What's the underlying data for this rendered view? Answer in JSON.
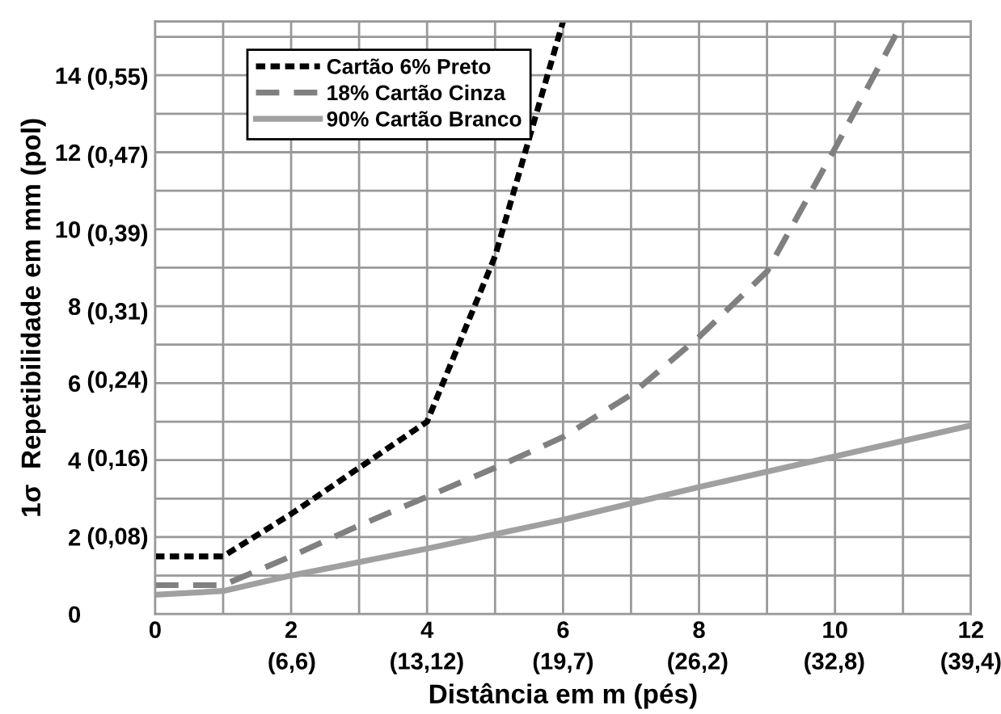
{
  "chart_data": {
    "type": "line",
    "xlabel": "Distância em m (pés)",
    "ylabel": "1σ  Repetibilidade em mm (pol)",
    "xlim": [
      0,
      12
    ],
    "ylim": [
      0,
      15.4
    ],
    "x2lim": [
      0,
      39.4
    ],
    "y2lim": [
      0,
      0.606
    ],
    "xticks": [
      0,
      {
        "value": 1,
        "label": null
      },
      2,
      {
        "value": 3,
        "label": null
      },
      4,
      {
        "value": 5,
        "label": null
      },
      6,
      {
        "value": 7,
        "label": null
      },
      8,
      {
        "value": 9,
        "label": null
      },
      10,
      {
        "value": 11,
        "label": null
      },
      12
    ],
    "x2ticks": [
      {
        "value": 6.6,
        "label": "(6,6)"
      },
      {
        "value": 13.12,
        "label": "(13,12)"
      },
      {
        "value": 19.7,
        "label": "(19,7)"
      },
      {
        "value": 26.2,
        "label": "(26,2)"
      },
      {
        "value": 32.8,
        "label": "(32,8)"
      },
      {
        "value": 39.4,
        "label": "(39,4)"
      }
    ],
    "yticks": [
      0,
      {
        "value": 1,
        "label": null
      },
      2,
      {
        "value": 3,
        "label": null
      },
      4,
      {
        "value": 5,
        "label": null
      },
      6,
      {
        "value": 7,
        "label": null
      },
      8,
      {
        "value": 9,
        "label": null
      },
      10,
      {
        "value": 11,
        "label": null
      },
      12,
      {
        "value": 13,
        "label": null
      },
      14,
      {
        "value": 15,
        "label": null
      }
    ],
    "y2ticks": [
      {
        "value": 0.08,
        "label": "(0,08)"
      },
      {
        "value": 0.16,
        "label": "(0,16)"
      },
      {
        "value": 0.24,
        "label": "(0,24)"
      },
      {
        "value": 0.31,
        "label": "(0,31)"
      },
      {
        "value": 0.39,
        "label": "(0,39)"
      },
      {
        "value": 0.47,
        "label": "(0,47)"
      },
      {
        "value": 0.55,
        "label": "(0,55)"
      }
    ],
    "grid": true,
    "legend": "top left",
    "series": [
      {
        "name": "Cartão 6% Preto",
        "color": "#000000",
        "line_style": "dotted",
        "x": [
          0,
          1,
          2,
          3,
          4,
          5,
          6
        ],
        "values": [
          1.5,
          1.5,
          2.6,
          3.8,
          5.0,
          9.3,
          15.4
        ]
      },
      {
        "name": "18% Cartão Cinza",
        "color": "#808080",
        "line_style": "dashed",
        "x": [
          0,
          1,
          2,
          3,
          4,
          5,
          6,
          7,
          8,
          9,
          10,
          11
        ],
        "values": [
          0.75,
          0.75,
          1.5,
          2.3,
          3.05,
          3.8,
          4.6,
          5.7,
          7.2,
          8.9,
          12.1,
          15.4
        ]
      },
      {
        "name": "90% Cartão Branco",
        "color": "#a0a0a0",
        "line_style": "solid",
        "x": [
          0,
          1,
          2,
          4,
          6,
          8,
          10,
          12
        ],
        "values": [
          0.5,
          0.6,
          1.0,
          1.7,
          2.45,
          3.3,
          4.1,
          4.9
        ]
      }
    ]
  }
}
